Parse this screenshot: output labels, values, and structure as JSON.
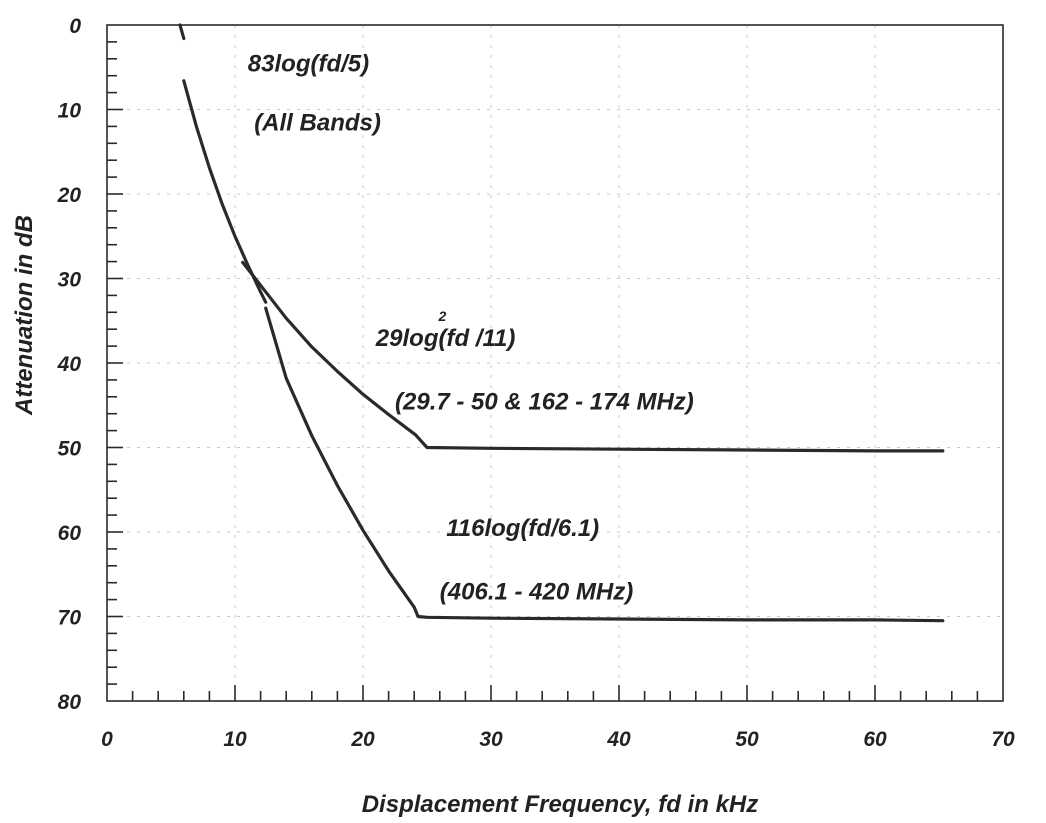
{
  "chart_data": {
    "type": "line",
    "title": "",
    "xlabel": "Displacement Frequency, fd in kHz",
    "ylabel": "Attenuation in dB",
    "xlim": [
      0,
      70
    ],
    "ylim": [
      0,
      80
    ],
    "y_inverted": true,
    "grid": true,
    "x_ticks": [
      "0",
      "10",
      "20",
      "30",
      "40",
      "50",
      "60",
      "70"
    ],
    "y_ticks": [
      "0",
      "10",
      "20",
      "30",
      "40",
      "50",
      "60",
      "70",
      "80"
    ],
    "series": [
      {
        "x": [
          6,
          7,
          8,
          9,
          10,
          11,
          12,
          12.4
        ],
        "y": [
          6.6,
          12.1,
          16.9,
          21.2,
          25.0,
          28.4,
          31.6,
          32.8
        ]
      },
      {
        "x": [
          10.6,
          12,
          14,
          16,
          18,
          20,
          22,
          24.1,
          25,
          30,
          40,
          50,
          60,
          65.3
        ],
        "y": [
          28.1,
          30.8,
          34.7,
          38.1,
          41.0,
          43.7,
          46.1,
          48.5,
          50.0,
          50.1,
          50.2,
          50.3,
          50.4,
          50.4
        ]
      },
      {
        "x": [
          12.4,
          14,
          16,
          18,
          20,
          22,
          24,
          24.3,
          25,
          30,
          40,
          50,
          60,
          65.3
        ],
        "y": [
          33.5,
          41.8,
          48.6,
          54.5,
          59.8,
          64.6,
          68.9,
          70.0,
          70.1,
          70.2,
          70.3,
          70.4,
          70.4,
          70.5
        ]
      },
      {
        "x": [
          5.7,
          6.0
        ],
        "y": [
          0,
          1.6
        ]
      }
    ],
    "annotations": [
      {
        "id": "a1_line1",
        "text": "83log(fd/5)",
        "x": 11,
        "y": 5.5
      },
      {
        "id": "a1_line2",
        "text": "(All Bands)",
        "x": 11.5,
        "y": 12.5
      },
      {
        "id": "a2_line1",
        "text": "29log(fd  /11)",
        "x": 21,
        "y": 38
      },
      {
        "id": "a2_sup",
        "text": "2",
        "x": 25.9,
        "y": 35
      },
      {
        "id": "a2_line2",
        "text": "(29.7 - 50 & 162 - 174 MHz)",
        "x": 22.5,
        "y": 45.5
      },
      {
        "id": "a3_line1",
        "text": "116log(fd/6.1)",
        "x": 26.5,
        "y": 60.5
      },
      {
        "id": "a3_line2",
        "text": "(406.1 - 420 MHz)",
        "x": 26,
        "y": 68
      }
    ]
  }
}
